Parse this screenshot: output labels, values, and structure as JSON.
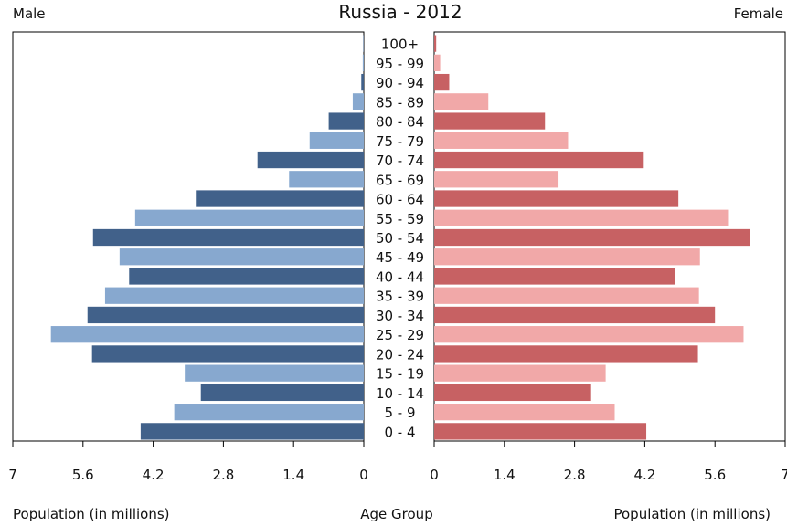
{
  "chart_data": {
    "type": "bar",
    "title": "Russia - 2012",
    "left_label": "Male",
    "right_label": "Female",
    "xlabel_left": "Population (in millions)",
    "xlabel_center": "Age Group",
    "xlabel_right": "Population (in millions)",
    "xlim": [
      0,
      7
    ],
    "x_ticks": [
      "7",
      "5.6",
      "4.2",
      "2.8",
      "1.4",
      "0"
    ],
    "x_ticks_right": [
      "0",
      "1.4",
      "2.8",
      "4.2",
      "5.6",
      "7"
    ],
    "categories": [
      "0 - 4",
      "5 - 9",
      "10 - 14",
      "15 - 19",
      "20 - 24",
      "25 - 29",
      "30 - 34",
      "35 - 39",
      "40 - 44",
      "45 - 49",
      "50 - 54",
      "55 - 59",
      "60 - 64",
      "65 - 69",
      "70 - 74",
      "75 - 79",
      "80 - 84",
      "85 - 89",
      "90 - 94",
      "95 - 99",
      "100+"
    ],
    "series": [
      {
        "name": "Male",
        "values": [
          4.45,
          3.78,
          3.25,
          3.57,
          5.42,
          6.24,
          5.51,
          5.16,
          4.68,
          4.87,
          5.4,
          4.56,
          3.35,
          1.49,
          2.12,
          1.08,
          0.7,
          0.22,
          0.05,
          0.02,
          0.01
        ],
        "colors": [
          "#41618a",
          "#87a8cf"
        ]
      },
      {
        "name": "Female",
        "values": [
          4.23,
          3.6,
          3.13,
          3.42,
          5.26,
          6.17,
          5.6,
          5.28,
          4.8,
          5.3,
          6.3,
          5.86,
          4.87,
          2.48,
          4.18,
          2.67,
          2.21,
          1.08,
          0.3,
          0.12,
          0.04
        ],
        "colors": [
          "#c76163",
          "#f1a8a8"
        ]
      }
    ],
    "grid": false,
    "legend": "none"
  }
}
